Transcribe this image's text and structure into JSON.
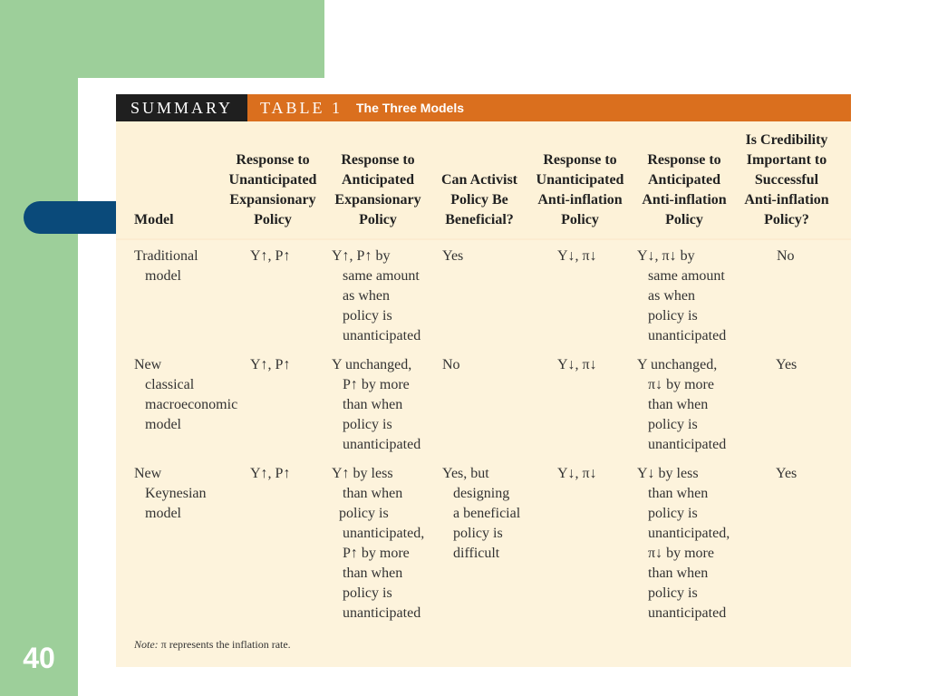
{
  "slide_number": "40",
  "banner": {
    "summary": "SUMMARY",
    "table": "TABLE 1",
    "title": "The Three Models"
  },
  "headers": [
    "Model",
    "Response to\nUnanticipated\nExpansionary\nPolicy",
    "Response to\nAnticipated\nExpansionary\nPolicy",
    "Can Activist\nPolicy Be\nBeneficial?",
    "Response to\nUnanticipated\nAnti-inflation\nPolicy",
    "Response to\nAnticipated\nAnti-inflation\nPolicy",
    "Is Credibility\nImportant to\nSuccessful\nAnti-inflation\nPolicy?"
  ],
  "rows": [
    {
      "model": "Traditional\n   model",
      "unanticipated_expansionary": "Y↑, P↑",
      "anticipated_expansionary": "Y↑, P↑ by\n   same amount\n   as when\n   policy is\n   unanticipated",
      "activist": "Yes",
      "unanticipated_anti_inflation": "Y↓, π↓",
      "anticipated_anti_inflation": "Y↓, π↓ by\n   same amount\n   as when\n   policy is\n   unanticipated",
      "credibility": "No"
    },
    {
      "model": "New\n   classical\n   macroeconomic\n   model",
      "unanticipated_expansionary": "Y↑, P↑",
      "anticipated_expansionary": "Y unchanged,\n   P↑ by more\n   than when\n   policy is\n   unanticipated",
      "activist": "No",
      "unanticipated_anti_inflation": "Y↓, π↓",
      "anticipated_anti_inflation": "Y unchanged,\n   π↓ by more\n   than when\n   policy is\n   unanticipated",
      "credibility": "Yes"
    },
    {
      "model": "New\n   Keynesian\n   model",
      "unanticipated_expansionary": "Y↑, P↑",
      "anticipated_expansionary": "Y↑ by less\n   than when\n  policy is\n   unanticipated,\n   P↑ by more\n   than when\n   policy is\n   unanticipated",
      "activist": "Yes, but\n   designing\n   a beneficial\n   policy is\n   difficult",
      "unanticipated_anti_inflation": "Y↓, π↓",
      "anticipated_anti_inflation": "Y↓ by less\n   than when\n   policy is\n   unanticipated,\n   π↓ by more\n   than when\n   policy is\n   unanticipated",
      "credibility": "Yes"
    }
  ],
  "note": {
    "label": "Note:",
    "text": "π represents the inflation rate."
  }
}
